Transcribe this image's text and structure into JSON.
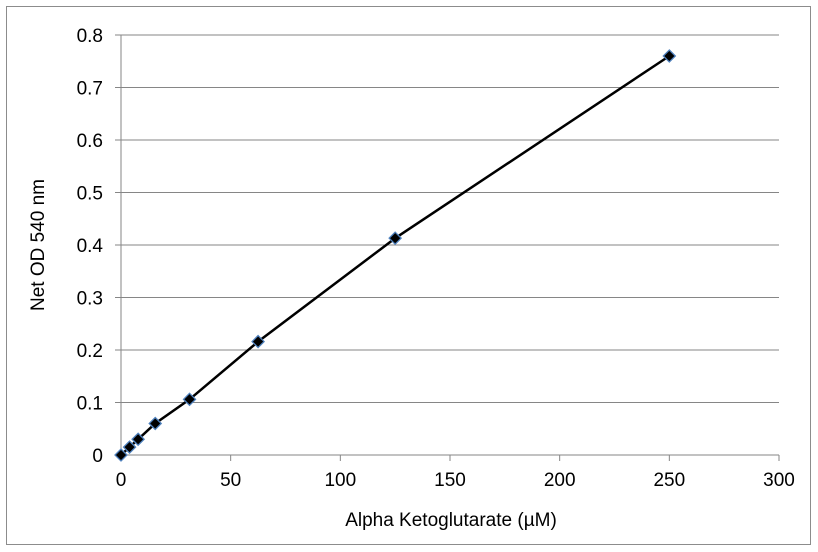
{
  "chart_data": {
    "type": "line",
    "title": "",
    "xlabel": "Alpha Ketoglutarate (µM)",
    "ylabel": "Net OD 540 nm",
    "xlim": [
      0,
      300
    ],
    "ylim": [
      0,
      0.8
    ],
    "x_ticks": [
      0,
      50,
      100,
      150,
      200,
      250,
      300
    ],
    "y_ticks": [
      0,
      0.1,
      0.2,
      0.3,
      0.4,
      0.5,
      0.6,
      0.7,
      0.8
    ],
    "x_tick_labels": [
      "0",
      "50",
      "100",
      "150",
      "200",
      "250",
      "300"
    ],
    "y_tick_labels": [
      "0",
      "0.1",
      "0.2",
      "0.3",
      "0.4",
      "0.5",
      "0.6",
      "0.7",
      "0.8"
    ],
    "grid": {
      "horizontal": true,
      "vertical": false
    },
    "legend": "none",
    "series": [
      {
        "x": [
          0,
          3.9,
          7.8,
          15.6,
          31.25,
          62.5,
          125,
          250
        ],
        "y": [
          0.0,
          0.015,
          0.03,
          0.06,
          0.106,
          0.216,
          0.413,
          0.76
        ],
        "line_color": "#000000",
        "marker": "diamond",
        "marker_fill": "#000000",
        "marker_edge": "#4f81bd"
      }
    ]
  }
}
